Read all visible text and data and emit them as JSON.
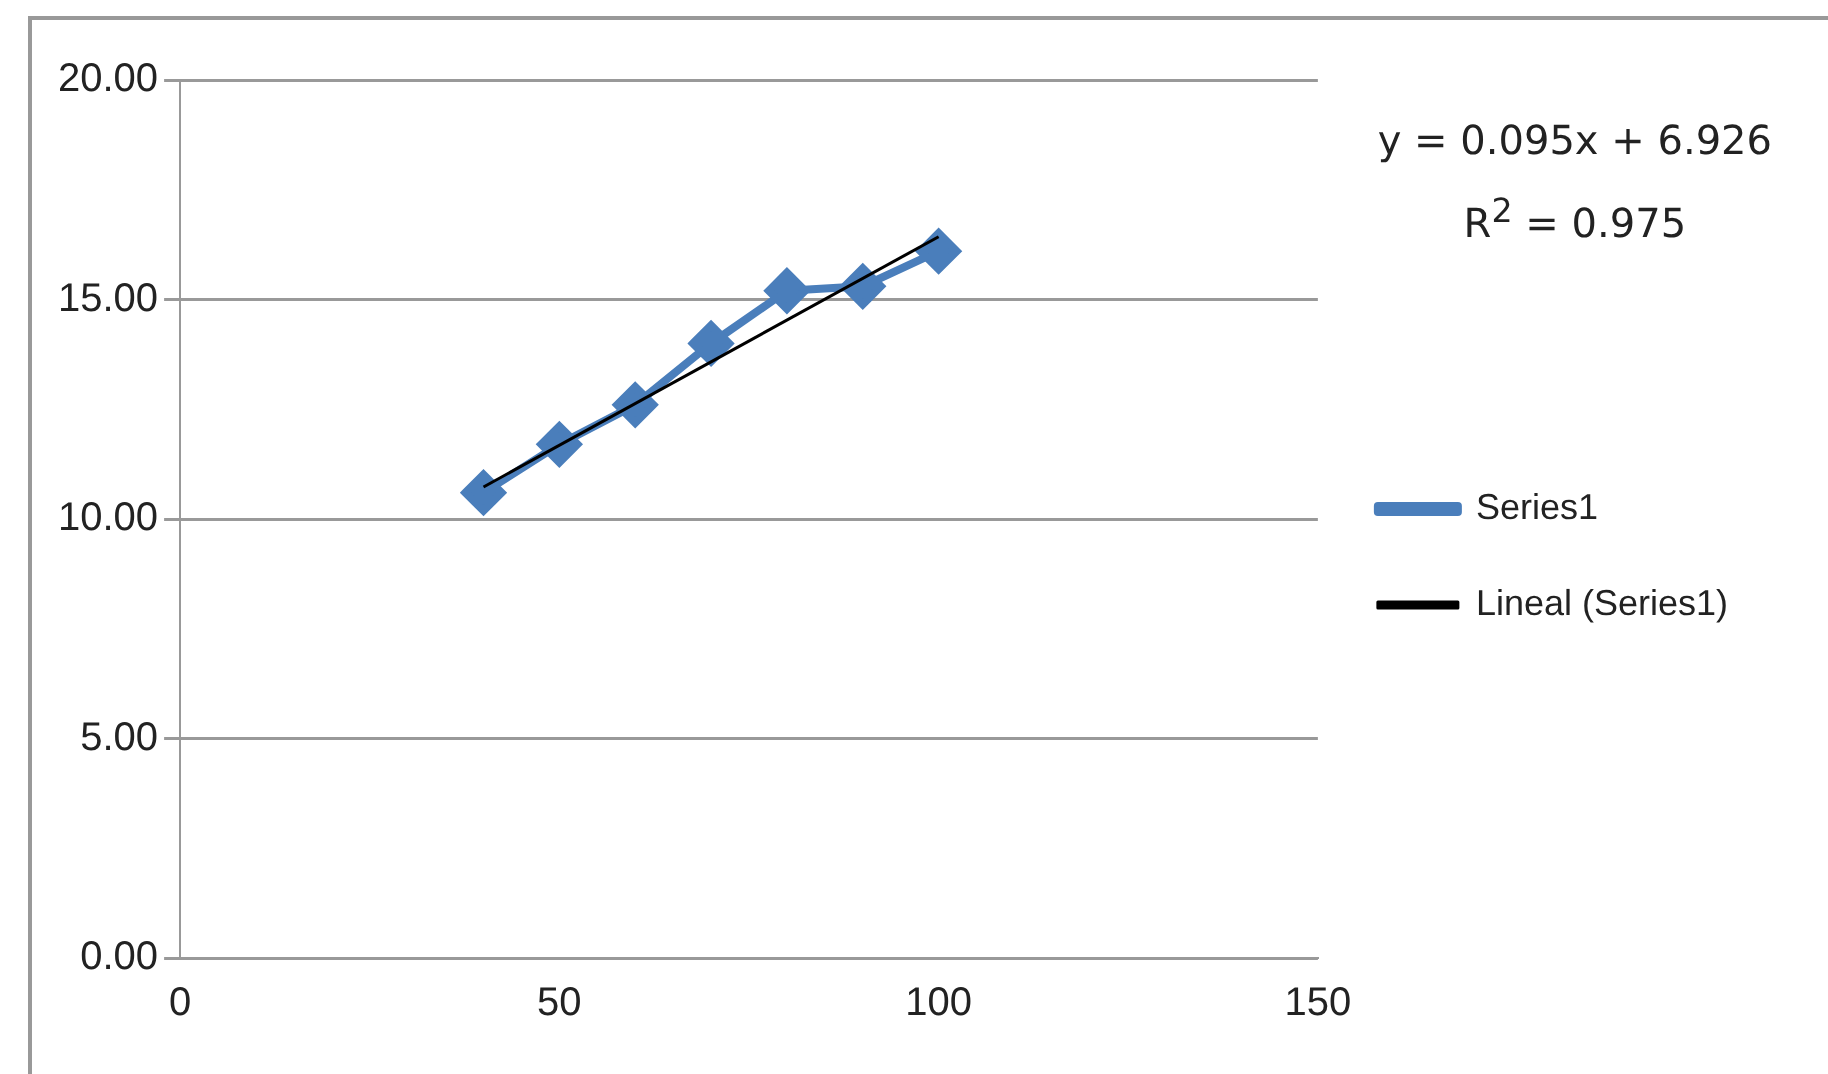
{
  "chart_data": {
    "type": "line",
    "x": [
      40,
      50,
      60,
      70,
      80,
      90,
      100
    ],
    "series": [
      {
        "name": "Series1",
        "color": "#4a7ebb",
        "values": [
          10.6,
          11.7,
          12.6,
          14.0,
          15.2,
          15.3,
          16.1
        ],
        "marker": "diamond"
      },
      {
        "name": "Lineal (Series1)",
        "color": "#000000",
        "type": "line",
        "x": [
          40,
          100
        ],
        "values": [
          10.73,
          16.43
        ],
        "marker": "none"
      }
    ],
    "xlim": [
      0,
      150
    ],
    "xticks": [
      0,
      50,
      100,
      150
    ],
    "ylim": [
      0,
      20
    ],
    "yticks": [
      {
        "value": 0,
        "label": "0.00"
      },
      {
        "value": 5,
        "label": "5.00"
      },
      {
        "value": 10,
        "label": "10.00"
      },
      {
        "value": 15,
        "label": "15.00"
      },
      {
        "value": 20,
        "label": "20.00"
      }
    ],
    "grid": "y",
    "legend": "right",
    "annotations": [
      "y = 0.095x + 6.926",
      "R$^{2}$ = 0.975"
    ]
  }
}
